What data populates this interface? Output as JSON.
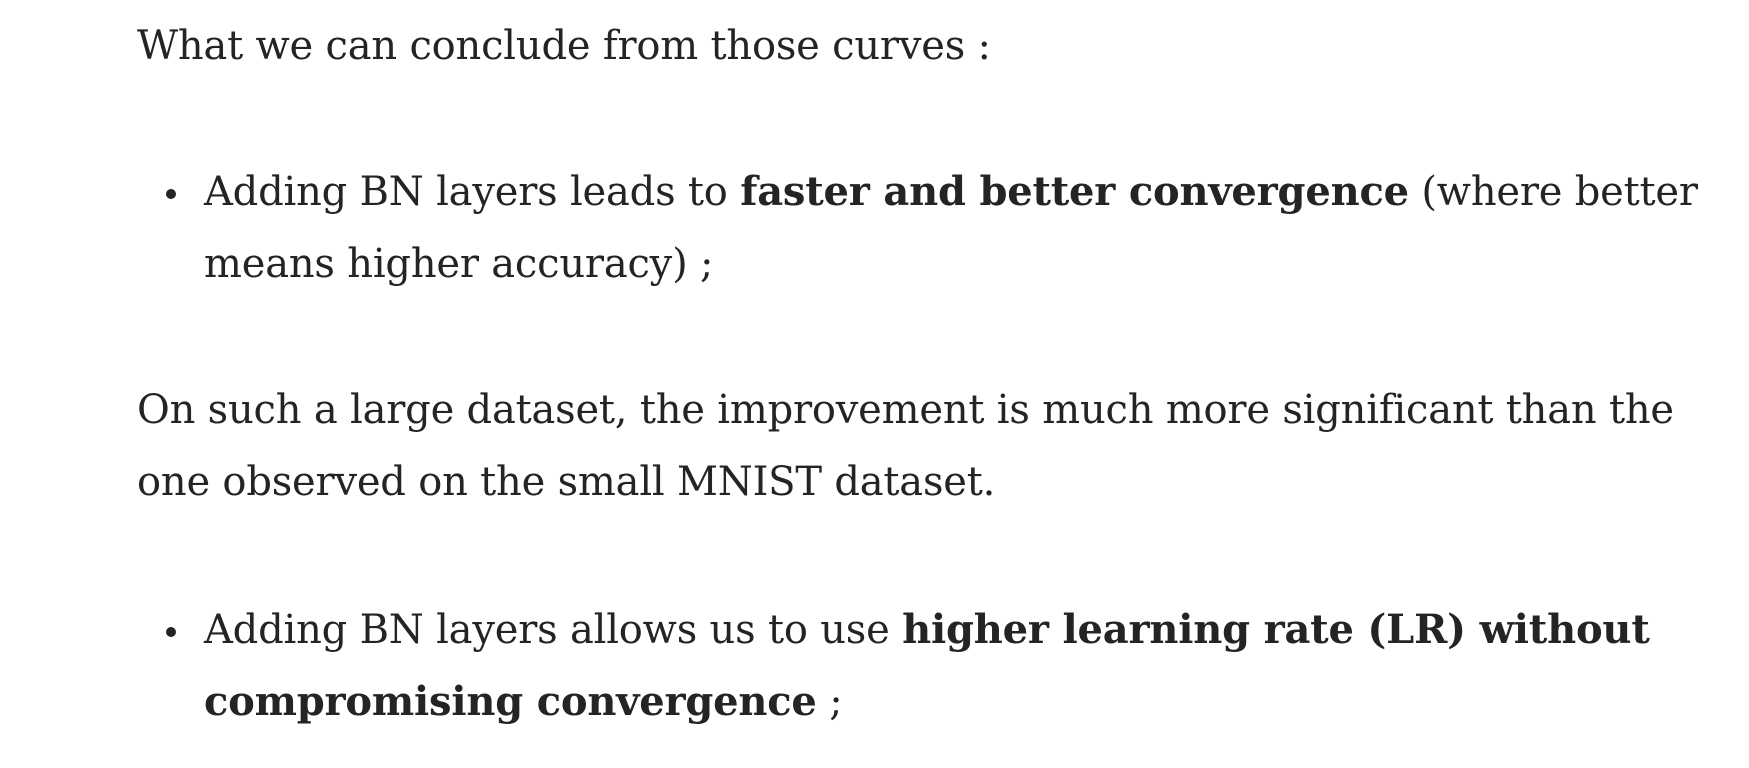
{
  "article": {
    "intro": "What we can conclude from those curves :",
    "bullet1": {
      "text_before": "Adding BN layers leads to ",
      "bold": "faster and better convergence",
      "text_after_line1": " (where better",
      "line2": "means higher accuracy) ;"
    },
    "paragraph": {
      "line1": "On such a large dataset, the improvement is much more significant than the",
      "line2": "one observed on the small MNIST dataset."
    },
    "bullet2": {
      "text_before": "Adding BN layers allows us to use ",
      "bold_line1": "higher learning rate (LR) without",
      "bold_line2": "compromising convergence",
      "text_after": " ;"
    }
  }
}
